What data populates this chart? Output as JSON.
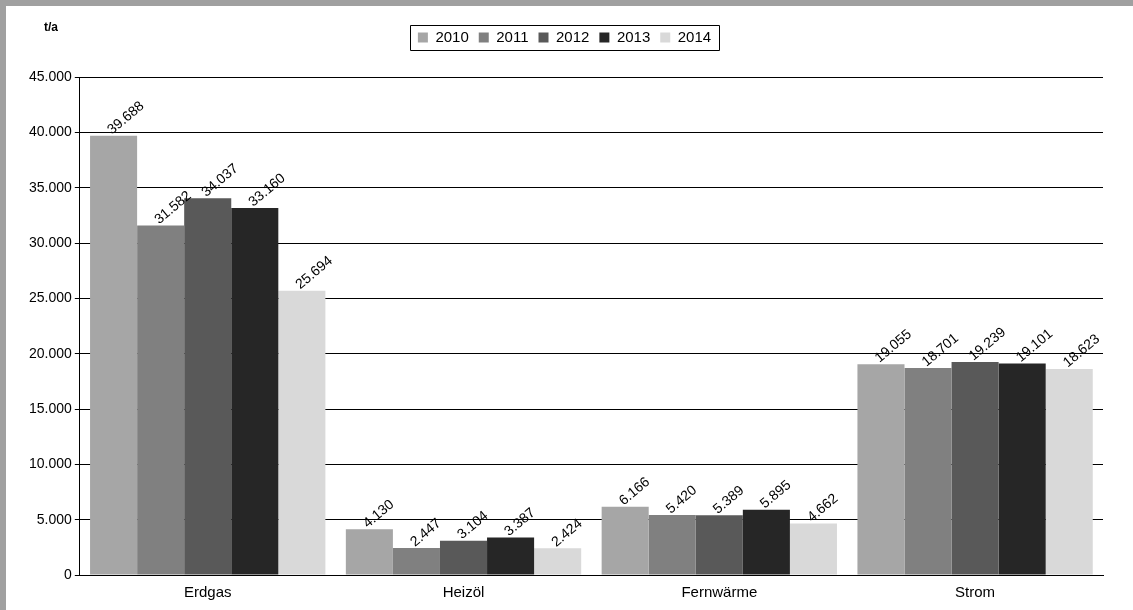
{
  "chart_data": {
    "type": "bar",
    "ylabel": "t/a",
    "categories": [
      "Erdgas",
      "Heizöl",
      "Fernwärme",
      "Strom"
    ],
    "series": [
      {
        "name": "2010",
        "color": "#a6a6a6",
        "values": [
          39688,
          4130,
          6166,
          19055
        ],
        "value_labels": [
          "39.688",
          "4.130",
          "6.166",
          "19.055"
        ]
      },
      {
        "name": "2011",
        "color": "#808080",
        "values": [
          31582,
          2447,
          5420,
          18701
        ],
        "value_labels": [
          "31.582",
          "2.447",
          "5.420",
          "18.701"
        ]
      },
      {
        "name": "2012",
        "color": "#595959",
        "values": [
          34037,
          3104,
          5389,
          19239
        ],
        "value_labels": [
          "34.037",
          "3.104",
          "5.389",
          "19.239"
        ]
      },
      {
        "name": "2013",
        "color": "#262626",
        "values": [
          33160,
          3387,
          5895,
          19101
        ],
        "value_labels": [
          "33.160",
          "3.387",
          "5.895",
          "19.101"
        ]
      },
      {
        "name": "2014",
        "color": "#d9d9d9",
        "values": [
          25694,
          2424,
          4662,
          18623
        ],
        "value_labels": [
          "25.694",
          "2.424",
          "4.662",
          "18.623"
        ]
      }
    ],
    "ylim": [
      0,
      45000
    ],
    "yticks": [
      {
        "value": 0,
        "label": "0"
      },
      {
        "value": 5000,
        "label": "5.000"
      },
      {
        "value": 10000,
        "label": "10.000"
      },
      {
        "value": 15000,
        "label": "15.000"
      },
      {
        "value": 20000,
        "label": "20.000"
      },
      {
        "value": 25000,
        "label": "25.000"
      },
      {
        "value": 30000,
        "label": "30.000"
      },
      {
        "value": 35000,
        "label": "35.000"
      },
      {
        "value": 40000,
        "label": "40.000"
      },
      {
        "value": 45000,
        "label": "45.000"
      }
    ],
    "grid": "y",
    "legend": "top"
  }
}
